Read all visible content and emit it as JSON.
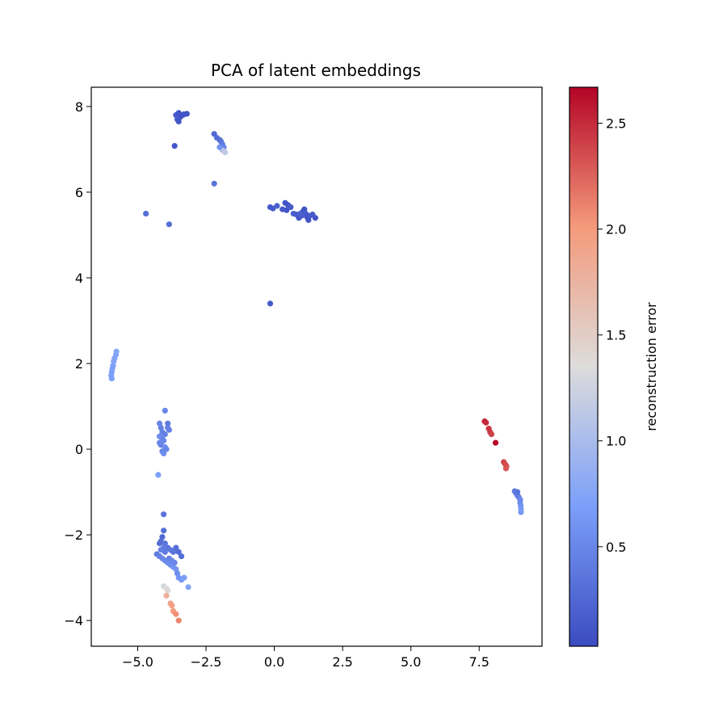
{
  "chart_data": {
    "type": "scatter",
    "title": "PCA of latent embeddings",
    "xlabel": "",
    "ylabel": "",
    "xlim": [
      -6.7,
      9.8
    ],
    "ylim": [
      -4.6,
      8.45
    ],
    "xticks": [
      -5.0,
      -2.5,
      0.0,
      2.5,
      5.0,
      7.5
    ],
    "xtick_labels": [
      "−5.0",
      "−2.5",
      "0.0",
      "2.5",
      "5.0",
      "7.5"
    ],
    "yticks": [
      -4,
      -2,
      0,
      2,
      4,
      6,
      8
    ],
    "ytick_labels": [
      "−4",
      "−2",
      "0",
      "2",
      "4",
      "6",
      "8"
    ],
    "grid": false,
    "legend": "none",
    "colormap": "coolwarm",
    "colorbar": {
      "label": "reconstruction error",
      "range": [
        0.03,
        2.67
      ],
      "ticks": [
        0.5,
        1.0,
        1.5,
        2.0,
        2.5
      ],
      "tick_labels": [
        "0.5",
        "1.0",
        "1.5",
        "2.0",
        "2.5"
      ]
    },
    "points": [
      {
        "x": -3.6,
        "y": 7.8,
        "c": 0.15
      },
      {
        "x": -3.5,
        "y": 7.85,
        "c": 0.1
      },
      {
        "x": -3.45,
        "y": 7.75,
        "c": 0.12
      },
      {
        "x": -3.3,
        "y": 7.82,
        "c": 0.1
      },
      {
        "x": -3.2,
        "y": 7.83,
        "c": 0.1
      },
      {
        "x": -3.55,
        "y": 7.7,
        "c": 0.15
      },
      {
        "x": -3.4,
        "y": 7.8,
        "c": 0.1
      },
      {
        "x": -3.5,
        "y": 7.65,
        "c": 0.12
      },
      {
        "x": -3.35,
        "y": 7.8,
        "c": 0.1
      },
      {
        "x": -3.65,
        "y": 7.08,
        "c": 0.12
      },
      {
        "x": -2.2,
        "y": 7.36,
        "c": 0.25
      },
      {
        "x": -2.1,
        "y": 7.27,
        "c": 0.3
      },
      {
        "x": -2.0,
        "y": 7.22,
        "c": 0.3
      },
      {
        "x": -1.95,
        "y": 7.18,
        "c": 0.35
      },
      {
        "x": -1.9,
        "y": 7.12,
        "c": 0.4
      },
      {
        "x": -1.85,
        "y": 7.05,
        "c": 0.5
      },
      {
        "x": -1.9,
        "y": 6.98,
        "c": 1.1
      },
      {
        "x": -1.8,
        "y": 6.93,
        "c": 1.15
      },
      {
        "x": -2.0,
        "y": 7.05,
        "c": 0.6
      },
      {
        "x": -2.2,
        "y": 6.2,
        "c": 0.35
      },
      {
        "x": -4.7,
        "y": 5.5,
        "c": 0.3
      },
      {
        "x": -3.85,
        "y": 5.25,
        "c": 0.3
      },
      {
        "x": -0.15,
        "y": 5.65,
        "c": 0.15
      },
      {
        "x": -0.05,
        "y": 5.62,
        "c": 0.15
      },
      {
        "x": 0.1,
        "y": 5.68,
        "c": 0.2
      },
      {
        "x": 0.3,
        "y": 5.6,
        "c": 0.15
      },
      {
        "x": 0.4,
        "y": 5.75,
        "c": 0.1
      },
      {
        "x": 0.5,
        "y": 5.7,
        "c": 0.1
      },
      {
        "x": 0.6,
        "y": 5.65,
        "c": 0.15
      },
      {
        "x": 0.45,
        "y": 5.58,
        "c": 0.1
      },
      {
        "x": 0.7,
        "y": 5.5,
        "c": 0.2
      },
      {
        "x": 0.8,
        "y": 5.48,
        "c": 0.15
      },
      {
        "x": 0.9,
        "y": 5.4,
        "c": 0.1
      },
      {
        "x": 1.0,
        "y": 5.45,
        "c": 0.15
      },
      {
        "x": 1.05,
        "y": 5.55,
        "c": 0.1
      },
      {
        "x": 1.1,
        "y": 5.6,
        "c": 0.1
      },
      {
        "x": 1.15,
        "y": 5.5,
        "c": 0.15
      },
      {
        "x": 1.2,
        "y": 5.42,
        "c": 0.1
      },
      {
        "x": 1.3,
        "y": 5.45,
        "c": 0.15
      },
      {
        "x": 1.25,
        "y": 5.35,
        "c": 0.1
      },
      {
        "x": 1.4,
        "y": 5.48,
        "c": 0.15
      },
      {
        "x": 1.5,
        "y": 5.4,
        "c": 0.1
      },
      {
        "x": 0.95,
        "y": 5.5,
        "c": 0.2
      },
      {
        "x": -0.15,
        "y": 3.4,
        "c": 0.15
      },
      {
        "x": -5.95,
        "y": 1.65,
        "c": 0.7
      },
      {
        "x": -5.97,
        "y": 1.72,
        "c": 0.7
      },
      {
        "x": -5.95,
        "y": 1.8,
        "c": 0.7
      },
      {
        "x": -5.93,
        "y": 1.88,
        "c": 0.7
      },
      {
        "x": -5.9,
        "y": 1.95,
        "c": 0.7
      },
      {
        "x": -5.88,
        "y": 2.05,
        "c": 0.75
      },
      {
        "x": -5.85,
        "y": 2.12,
        "c": 0.75
      },
      {
        "x": -5.8,
        "y": 2.2,
        "c": 0.75
      },
      {
        "x": -5.78,
        "y": 2.28,
        "c": 0.75
      },
      {
        "x": -4.0,
        "y": 0.9,
        "c": 0.5
      },
      {
        "x": -4.2,
        "y": 0.6,
        "c": 0.5
      },
      {
        "x": -4.15,
        "y": 0.5,
        "c": 0.45
      },
      {
        "x": -4.1,
        "y": 0.4,
        "c": 0.45
      },
      {
        "x": -4.2,
        "y": 0.3,
        "c": 0.55
      },
      {
        "x": -4.05,
        "y": 0.2,
        "c": 0.5
      },
      {
        "x": -4.15,
        "y": 0.1,
        "c": 0.45
      },
      {
        "x": -4.0,
        "y": 0.05,
        "c": 0.55
      },
      {
        "x": -4.1,
        "y": -0.05,
        "c": 0.5
      },
      {
        "x": -4.05,
        "y": -0.1,
        "c": 0.55
      },
      {
        "x": -4.2,
        "y": 0.15,
        "c": 0.5
      },
      {
        "x": -3.95,
        "y": 0.0,
        "c": 0.5
      },
      {
        "x": -3.9,
        "y": 0.5,
        "c": 0.45
      },
      {
        "x": -3.85,
        "y": 0.45,
        "c": 0.45
      },
      {
        "x": -3.9,
        "y": 0.6,
        "c": 0.4
      },
      {
        "x": -4.0,
        "y": 0.35,
        "c": 0.45
      },
      {
        "x": -4.1,
        "y": 0.25,
        "c": 0.5
      },
      {
        "x": -4.25,
        "y": -0.6,
        "c": 0.7
      },
      {
        "x": -4.05,
        "y": -1.52,
        "c": 0.35
      },
      {
        "x": -4.05,
        "y": -1.9,
        "c": 0.3
      },
      {
        "x": -4.1,
        "y": -2.05,
        "c": 0.25
      },
      {
        "x": -4.15,
        "y": -2.15,
        "c": 0.3
      },
      {
        "x": -4.2,
        "y": -2.2,
        "c": 0.3
      },
      {
        "x": -4.0,
        "y": -2.2,
        "c": 0.35
      },
      {
        "x": -3.9,
        "y": -2.3,
        "c": 0.35
      },
      {
        "x": -3.8,
        "y": -2.35,
        "c": 0.4
      },
      {
        "x": -3.7,
        "y": -2.4,
        "c": 0.35
      },
      {
        "x": -3.6,
        "y": -2.3,
        "c": 0.3
      },
      {
        "x": -3.5,
        "y": -2.4,
        "c": 0.3
      },
      {
        "x": -3.4,
        "y": -2.5,
        "c": 0.3
      },
      {
        "x": -4.3,
        "y": -2.45,
        "c": 0.4
      },
      {
        "x": -4.2,
        "y": -2.5,
        "c": 0.45
      },
      {
        "x": -4.1,
        "y": -2.55,
        "c": 0.5
      },
      {
        "x": -4.0,
        "y": -2.6,
        "c": 0.5
      },
      {
        "x": -3.9,
        "y": -2.65,
        "c": 0.55
      },
      {
        "x": -3.8,
        "y": -2.7,
        "c": 0.55
      },
      {
        "x": -3.7,
        "y": -2.75,
        "c": 0.6
      },
      {
        "x": -3.6,
        "y": -2.8,
        "c": 0.6
      },
      {
        "x": -3.55,
        "y": -2.9,
        "c": 0.55
      },
      {
        "x": -3.5,
        "y": -3.0,
        "c": 0.6
      },
      {
        "x": -3.4,
        "y": -3.05,
        "c": 0.65
      },
      {
        "x": -3.3,
        "y": -3.0,
        "c": 0.7
      },
      {
        "x": -3.15,
        "y": -3.22,
        "c": 0.75
      },
      {
        "x": -4.0,
        "y": -2.4,
        "c": 0.4
      },
      {
        "x": -3.85,
        "y": -2.55,
        "c": 0.45
      },
      {
        "x": -3.75,
        "y": -2.6,
        "c": 0.5
      },
      {
        "x": -4.15,
        "y": -2.35,
        "c": 0.45
      },
      {
        "x": -4.05,
        "y": -2.3,
        "c": 0.4
      },
      {
        "x": -3.65,
        "y": -2.65,
        "c": 0.5
      },
      {
        "x": -4.05,
        "y": -3.2,
        "c": 1.3
      },
      {
        "x": -3.95,
        "y": -3.25,
        "c": 1.35
      },
      {
        "x": -3.9,
        "y": -3.3,
        "c": 1.4
      },
      {
        "x": -3.95,
        "y": -3.42,
        "c": 1.8
      },
      {
        "x": -3.8,
        "y": -3.6,
        "c": 1.9
      },
      {
        "x": -3.75,
        "y": -3.65,
        "c": 1.95
      },
      {
        "x": -3.7,
        "y": -3.78,
        "c": 2.0
      },
      {
        "x": -3.6,
        "y": -3.85,
        "c": 2.05
      },
      {
        "x": -3.5,
        "y": -4.0,
        "c": 2.1
      },
      {
        "x": 7.7,
        "y": 0.65,
        "c": 2.55
      },
      {
        "x": 7.75,
        "y": 0.62,
        "c": 2.5
      },
      {
        "x": 7.85,
        "y": 0.48,
        "c": 2.45
      },
      {
        "x": 7.9,
        "y": 0.4,
        "c": 2.45
      },
      {
        "x": 7.95,
        "y": 0.35,
        "c": 2.4
      },
      {
        "x": 8.1,
        "y": 0.15,
        "c": 2.65
      },
      {
        "x": 8.4,
        "y": -0.3,
        "c": 2.4
      },
      {
        "x": 8.45,
        "y": -0.35,
        "c": 2.35
      },
      {
        "x": 8.5,
        "y": -0.4,
        "c": 2.35
      },
      {
        "x": 8.48,
        "y": -0.45,
        "c": 2.3
      },
      {
        "x": 8.8,
        "y": -0.98,
        "c": 0.4
      },
      {
        "x": 8.85,
        "y": -1.03,
        "c": 0.4
      },
      {
        "x": 8.9,
        "y": -1.08,
        "c": 0.45
      },
      {
        "x": 8.95,
        "y": -1.12,
        "c": 0.45
      },
      {
        "x": 9.0,
        "y": -1.18,
        "c": 0.5
      },
      {
        "x": 9.0,
        "y": -1.25,
        "c": 0.55
      },
      {
        "x": 9.02,
        "y": -1.32,
        "c": 0.6
      },
      {
        "x": 9.03,
        "y": -1.4,
        "c": 0.65
      },
      {
        "x": 9.03,
        "y": -1.47,
        "c": 0.65
      },
      {
        "x": 8.9,
        "y": -1.0,
        "c": 0.35
      }
    ]
  }
}
